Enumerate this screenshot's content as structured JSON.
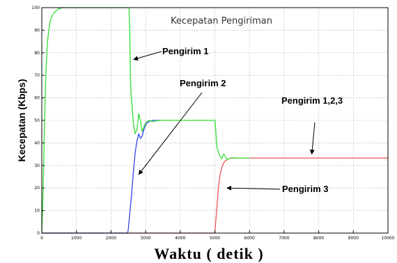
{
  "chart_data": {
    "type": "line",
    "title": "Kecepatan Pengiriman",
    "xlabel": "Waktu ( detik )",
    "ylabel": "Kecepatan (Kbps)",
    "xlim": [
      0,
      10000
    ],
    "ylim": [
      0,
      100
    ],
    "xticks": [
      0,
      1000,
      2000,
      3000,
      4000,
      5000,
      6000,
      7000,
      8000,
      9000,
      10000
    ],
    "yticks": [
      0,
      10,
      20,
      30,
      40,
      50,
      60,
      70,
      80,
      90,
      100
    ],
    "grid": true,
    "series": [
      {
        "name": "Pengirim 1",
        "color": "#33dd33",
        "x": [
          0,
          40,
          80,
          120,
          160,
          200,
          260,
          320,
          400,
          500,
          600,
          700,
          2520,
          2540,
          2560,
          2580,
          2600,
          2650,
          2700,
          2750,
          2800,
          2850,
          2900,
          2950,
          3000,
          3100,
          3200,
          3400,
          5000,
          5020,
          5040,
          5060,
          5100,
          5150,
          5200,
          5260,
          5300,
          5350,
          5400,
          5500,
          5600,
          5700,
          5800,
          6000
        ],
        "y": [
          0,
          20,
          50,
          72,
          84,
          90,
          95,
          97,
          98.5,
          99.5,
          100,
          100,
          100,
          90,
          70,
          62,
          58,
          48,
          44,
          46,
          53,
          50,
          45,
          47,
          49,
          50,
          49.5,
          50,
          50,
          47,
          42,
          38,
          36,
          34,
          33,
          35,
          34,
          32.5,
          33,
          33.5,
          33.2,
          33.3,
          33.3,
          33.3
        ]
      },
      {
        "name": "Pengirim 2",
        "color": "#3344ee",
        "x": [
          0,
          2480,
          2500,
          2520,
          2550,
          2600,
          2650,
          2700,
          2750,
          2800,
          2850,
          2900,
          2950,
          3000,
          3050,
          3100,
          3200,
          3400
        ],
        "y": [
          0,
          0,
          2,
          5,
          10,
          18,
          28,
          36,
          41,
          44,
          42,
          43,
          46,
          48,
          49,
          49.5,
          50,
          50
        ]
      },
      {
        "name": "Pengirim 3",
        "color": "#ee5555",
        "x": [
          0,
          5000,
          5050,
          5100,
          5150,
          5200,
          5250,
          5300,
          5350,
          5400,
          5500,
          5600,
          10000
        ],
        "y": [
          0,
          0,
          10,
          20,
          26,
          29,
          31,
          32,
          32.5,
          33,
          33.3,
          33.3,
          33.3
        ]
      }
    ],
    "annotations": [
      {
        "text": "Pengirim 1",
        "point": [
          2650,
          77
        ]
      },
      {
        "text": "Pengirim 2",
        "point": [
          2800,
          26
        ]
      },
      {
        "text": "Pengirim 1,2,3",
        "point": [
          7800,
          35
        ]
      },
      {
        "text": "Pengirim 3",
        "point": [
          5350,
          20
        ]
      }
    ]
  }
}
